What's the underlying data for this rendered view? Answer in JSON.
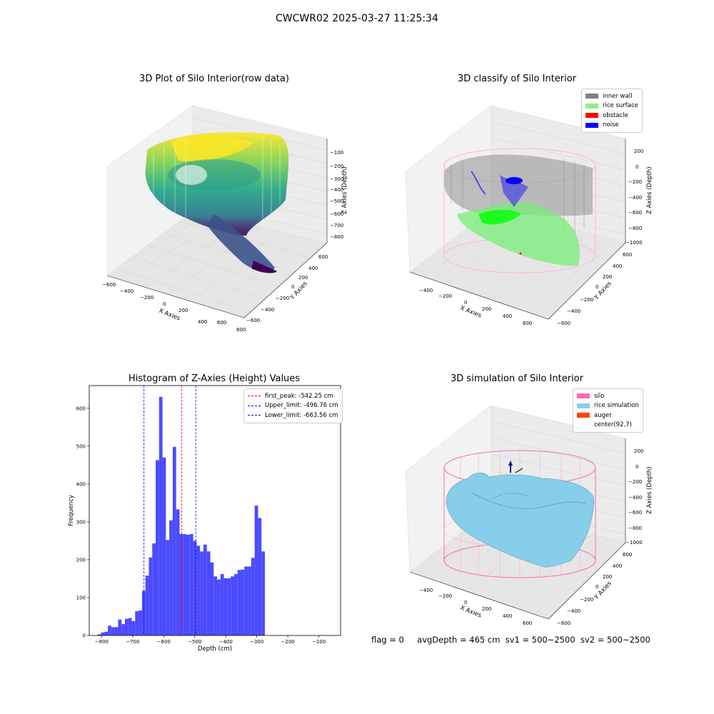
{
  "suptitle": "CWCWR02 2025-03-27 11:25:34",
  "panels": {
    "raw": {
      "title": "3D Plot of Silo Interior(row data)",
      "xlabel": "X Axies",
      "ylabel": "Y Axies",
      "zlabel": "Z Axies (Depth)",
      "xticks": [
        "−600",
        "−400",
        "−200",
        "0",
        "200",
        "400",
        "600",
        "800"
      ],
      "yticks": [
        "−600",
        "−400",
        "−200",
        "0",
        "200",
        "400",
        "600"
      ],
      "zticks": [
        "−100",
        "−200",
        "−300",
        "−400",
        "−500",
        "−600",
        "−700",
        "−800"
      ]
    },
    "classify": {
      "title": "3D classify of Silo Interior",
      "xlabel": "X Axies",
      "ylabel": "Y Axies",
      "zlabel": "Z Axies (Depth)",
      "xticks": [
        "−400",
        "−200",
        "0",
        "200",
        "400",
        "600"
      ],
      "yticks": [
        "−600",
        "−400",
        "−200",
        "0",
        "200",
        "400",
        "600"
      ],
      "zticks": [
        "200",
        "0",
        "−200",
        "−400",
        "−600",
        "−800",
        "−1000"
      ],
      "legend": [
        {
          "label": "inner wall",
          "color": "#808080"
        },
        {
          "label": "rice surface",
          "color": "#90ee90"
        },
        {
          "label": "obstacle",
          "color": "#ff0000"
        },
        {
          "label": "noise",
          "color": "#0000ff"
        }
      ]
    },
    "simulation": {
      "title": "3D simulation of Silo Interior",
      "xlabel": "X Axies",
      "ylabel": "Y Axies",
      "zlabel": "Z Axies (Depth)",
      "xticks": [
        "−400",
        "−200",
        "0",
        "200",
        "400",
        "600"
      ],
      "yticks": [
        "−600",
        "−400",
        "−200",
        "0",
        "200",
        "400",
        "600"
      ],
      "zticks": [
        "200",
        "0",
        "−200",
        "−400",
        "−600",
        "−800",
        "−1000"
      ],
      "legend": [
        {
          "label": "silo",
          "color": "#ff69b4"
        },
        {
          "label": "rice simulation",
          "color": "#87ceeb"
        },
        {
          "label": "auger",
          "color": "#ff4500"
        },
        {
          "label": "center(92,7)",
          "color": "#ffffff"
        }
      ]
    }
  },
  "chart_data": {
    "type": "bar",
    "title": "Histogram of Z-Axies (Height) Values",
    "xlabel": "Depth (cm)",
    "ylabel": "Frequency",
    "xlim": [
      -840,
      -30
    ],
    "ylim": [
      0,
      660
    ],
    "xticks": [
      -800,
      -700,
      -600,
      -500,
      -400,
      -300,
      -200,
      -100
    ],
    "yticks": [
      0,
      100,
      200,
      300,
      400,
      500,
      600
    ],
    "bar_color": "#4b4bff",
    "bin_start": -813,
    "bin_width": 11,
    "values": [
      3,
      8,
      10,
      26,
      22,
      22,
      42,
      30,
      44,
      46,
      38,
      64,
      66,
      118,
      158,
      206,
      243,
      463,
      630,
      470,
      252,
      304,
      498,
      333,
      268,
      268,
      266,
      268,
      250,
      237,
      222,
      240,
      222,
      193,
      156,
      148,
      162,
      151,
      151,
      156,
      162,
      173,
      174,
      182,
      182,
      205,
      343,
      310,
      222
    ],
    "vlines": [
      {
        "x": -542.25,
        "color": "#ff0000",
        "label": "first_peak: -542.25 cm"
      },
      {
        "x": -496.76,
        "color": "#0000ff",
        "label": "Upper_limit: -496.76 cm"
      },
      {
        "x": -663.56,
        "color": "#0000ff",
        "label": "Lower_limit: -663.56 cm"
      }
    ],
    "legend_position": "top-right"
  },
  "status": {
    "flag": "flag = 0",
    "avg": "avgDepth = 465 cm",
    "sv1": "sv1 = 500~2500",
    "sv2": "sv2 = 500~2500"
  }
}
